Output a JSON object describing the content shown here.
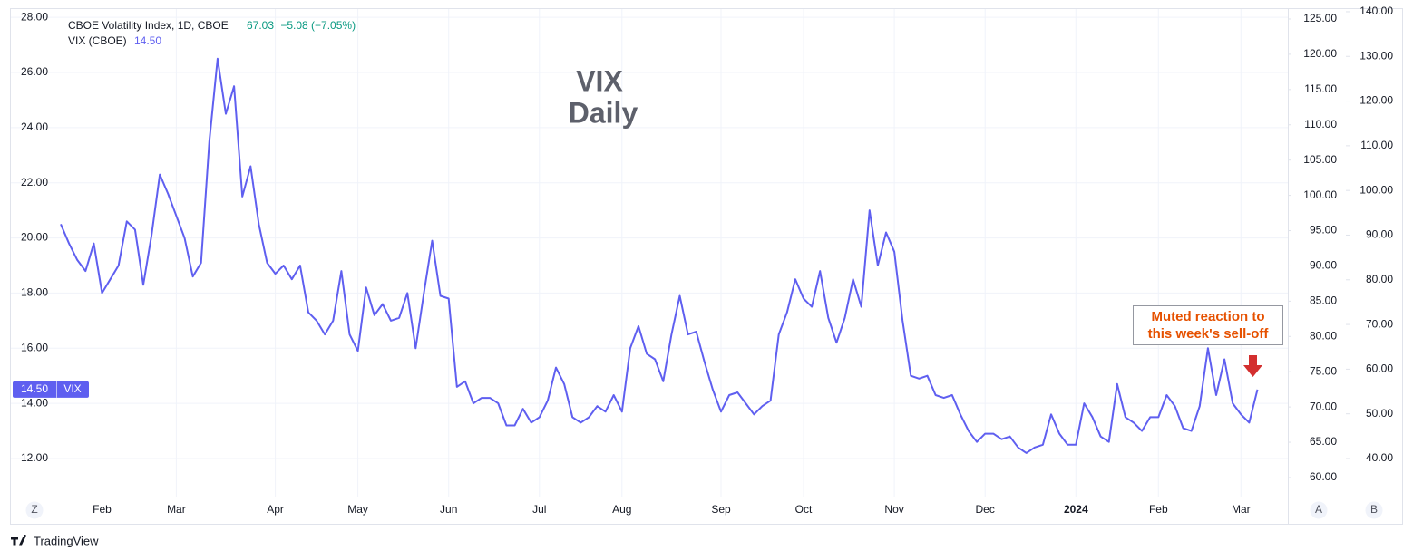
{
  "chart_data": {
    "type": "line",
    "title": "VIX",
    "subtitle": "Daily",
    "header": {
      "symbol": "CBOE Volatility Index, 1D, CBOE",
      "close": "67.03",
      "change": "−5.08 (−7.05%)",
      "series_label": "VIX (CBOE)",
      "series_value": "14.50",
      "price_tag": "VIX"
    },
    "annotation": [
      "Muted reaction to",
      "this week's sell-off"
    ],
    "buttons": {
      "left": "Z",
      "a": "A",
      "b": "B"
    },
    "brand": "TradingView",
    "grid": true,
    "categories": [
      null,
      null,
      null,
      null,
      null,
      "Feb",
      null,
      null,
      null,
      null,
      null,
      null,
      null,
      null,
      "Mar",
      null,
      null,
      null,
      null,
      null,
      null,
      null,
      null,
      null,
      null,
      null,
      "Apr",
      null,
      null,
      null,
      null,
      null,
      null,
      null,
      null,
      null,
      "May",
      null,
      null,
      null,
      null,
      null,
      null,
      null,
      null,
      null,
      null,
      "Jun",
      null,
      null,
      null,
      null,
      null,
      null,
      null,
      null,
      null,
      null,
      "Jul",
      null,
      null,
      null,
      null,
      null,
      null,
      null,
      null,
      null,
      "Aug",
      null,
      null,
      null,
      null,
      null,
      null,
      null,
      null,
      null,
      null,
      null,
      "Sep",
      null,
      null,
      null,
      null,
      null,
      null,
      null,
      null,
      null,
      "Oct",
      null,
      null,
      null,
      null,
      null,
      null,
      null,
      null,
      null,
      null,
      "Nov",
      null,
      null,
      null,
      null,
      null,
      null,
      null,
      null,
      null,
      null,
      "Dec",
      null,
      null,
      null,
      null,
      null,
      null,
      null,
      null,
      null,
      null,
      "2024",
      null,
      null,
      null,
      null,
      null,
      null,
      null,
      null,
      null,
      "Feb",
      null,
      null,
      null,
      null,
      null,
      null,
      null,
      null,
      null,
      "Mar",
      null,
      null
    ],
    "series": [
      {
        "name": "VIX",
        "color": "#5f5ff0",
        "values": [
          20.5,
          19.8,
          19.2,
          18.8,
          19.8,
          18.0,
          18.5,
          19.0,
          20.6,
          20.3,
          18.3,
          20.1,
          22.3,
          21.6,
          20.8,
          20.0,
          18.6,
          19.1,
          23.5,
          26.5,
          24.5,
          25.5,
          21.5,
          22.6,
          20.5,
          19.1,
          18.7,
          19.0,
          18.5,
          19.0,
          17.3,
          17.0,
          16.5,
          17.0,
          18.8,
          16.5,
          15.9,
          18.2,
          17.2,
          17.6,
          17.0,
          17.1,
          18.0,
          16.0,
          18.0,
          19.9,
          17.9,
          17.8,
          14.6,
          14.8,
          14.0,
          14.2,
          14.2,
          14.0,
          13.2,
          13.2,
          13.8,
          13.3,
          13.5,
          14.1,
          15.3,
          14.7,
          13.5,
          13.3,
          13.5,
          13.9,
          13.7,
          14.3,
          13.7,
          16.0,
          16.8,
          15.8,
          15.6,
          14.8,
          16.5,
          17.9,
          16.5,
          16.6,
          15.5,
          14.5,
          13.7,
          14.3,
          14.4,
          14.0,
          13.6,
          13.9,
          14.1,
          16.5,
          17.3,
          18.5,
          17.8,
          17.5,
          18.8,
          17.1,
          16.2,
          17.1,
          18.5,
          17.5,
          21.0,
          19.0,
          20.2,
          19.5,
          17.0,
          15.0,
          14.9,
          15.0,
          14.3,
          14.2,
          14.3,
          13.6,
          13.0,
          12.6,
          12.9,
          12.9,
          12.7,
          12.8,
          12.4,
          12.2,
          12.4,
          12.5,
          13.6,
          12.9,
          12.5,
          12.5,
          14.0,
          13.5,
          12.8,
          12.6,
          14.7,
          13.5,
          13.3,
          13.0,
          13.5,
          13.5,
          14.3,
          13.9,
          13.1,
          13.0,
          13.9,
          16.0,
          14.3,
          15.6,
          14.0,
          13.6,
          13.3,
          14.5
        ]
      }
    ],
    "ylim": [
      10.62,
      28.3
    ],
    "yticks": [
      {
        "value": 12,
        "label": "12.00"
      },
      {
        "value": 14,
        "label": "14.00"
      },
      {
        "value": 16,
        "label": "16.00"
      },
      {
        "value": 18,
        "label": "18.00"
      },
      {
        "value": 20,
        "label": "20.00"
      },
      {
        "value": 22,
        "label": "22.00"
      },
      {
        "value": 24,
        "label": "24.00"
      },
      {
        "value": 26,
        "label": "26.00"
      },
      {
        "value": 28,
        "label": "28.00"
      }
    ],
    "y2lim": [
      57.3,
      126.41
    ],
    "y2ticks": [
      {
        "value": 60,
        "label": "60.00"
      },
      {
        "value": 65,
        "label": "65.00"
      },
      {
        "value": 70,
        "label": "70.00"
      },
      {
        "value": 75,
        "label": "75.00"
      },
      {
        "value": 80,
        "label": "80.00"
      },
      {
        "value": 85,
        "label": "85.00"
      },
      {
        "value": 90,
        "label": "90.00"
      },
      {
        "value": 95,
        "label": "95.00"
      },
      {
        "value": 100,
        "label": "100.00"
      },
      {
        "value": 105,
        "label": "105.00"
      },
      {
        "value": 110,
        "label": "110.00"
      },
      {
        "value": 115,
        "label": "115.00"
      },
      {
        "value": 120,
        "label": "120.00"
      },
      {
        "value": 125,
        "label": "125.00"
      }
    ],
    "y3lim": [
      31.48,
      140.6
    ],
    "y3ticks": [
      {
        "value": 40,
        "label": "40.00"
      },
      {
        "value": 50,
        "label": "50.00"
      },
      {
        "value": 60,
        "label": "60.00"
      },
      {
        "value": 70,
        "label": "70.00"
      },
      {
        "value": 80,
        "label": "80.00"
      },
      {
        "value": 90,
        "label": "90.00"
      },
      {
        "value": 100,
        "label": "100.00"
      },
      {
        "value": 110,
        "label": "110.00"
      },
      {
        "value": 120,
        "label": "120.00"
      },
      {
        "value": 130,
        "label": "130.00"
      },
      {
        "value": 140,
        "label": "140.00"
      }
    ]
  }
}
